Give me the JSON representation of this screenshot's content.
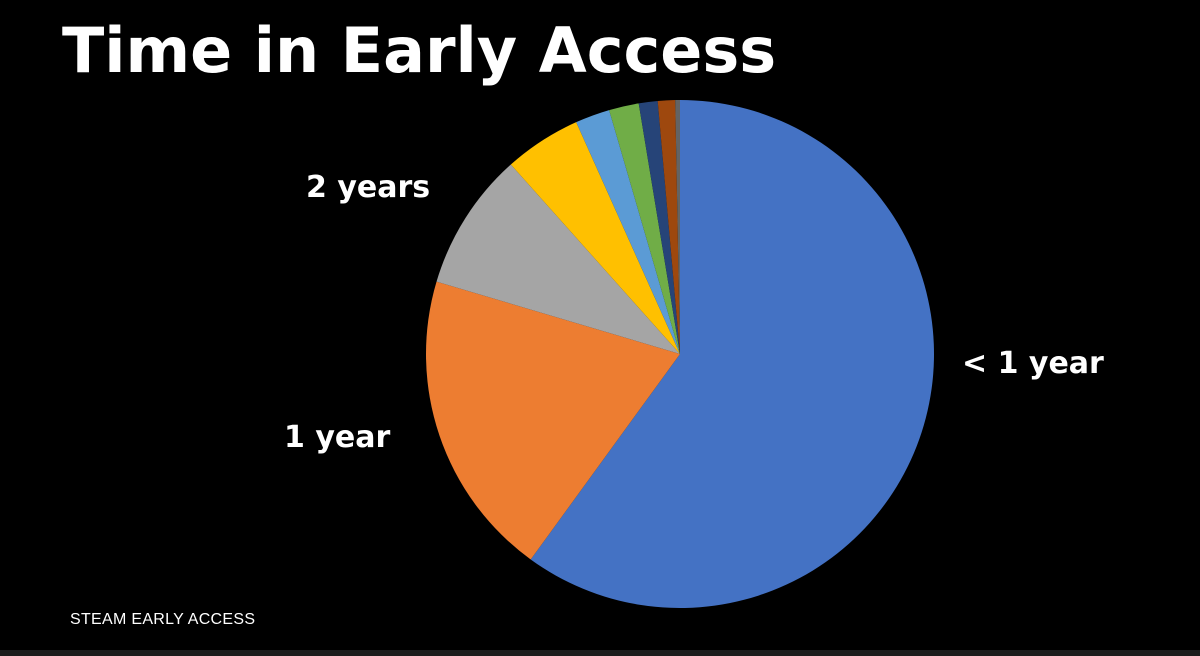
{
  "chart_data": {
    "type": "pie",
    "title": "Time in Early Access",
    "start": "top",
    "direction": "clockwise",
    "slices": [
      {
        "label": "< 1 year",
        "value": 60.0,
        "color": "#4472C4"
      },
      {
        "label": "1 year",
        "value": 19.6,
        "color": "#ED7D31"
      },
      {
        "label": "2 years",
        "value": 8.8,
        "color": "#A5A5A5"
      },
      {
        "label": "",
        "value": 4.9,
        "color": "#FFC000"
      },
      {
        "label": "",
        "value": 2.2,
        "color": "#5B9BD5"
      },
      {
        "label": "",
        "value": 1.9,
        "color": "#70AD47"
      },
      {
        "label": "",
        "value": 1.2,
        "color": "#264478"
      },
      {
        "label": "",
        "value": 1.1,
        "color": "#9E480E"
      },
      {
        "label": "",
        "value": 0.3,
        "color": "#636363"
      }
    ]
  },
  "footer": "STEAM EARLY ACCESS"
}
